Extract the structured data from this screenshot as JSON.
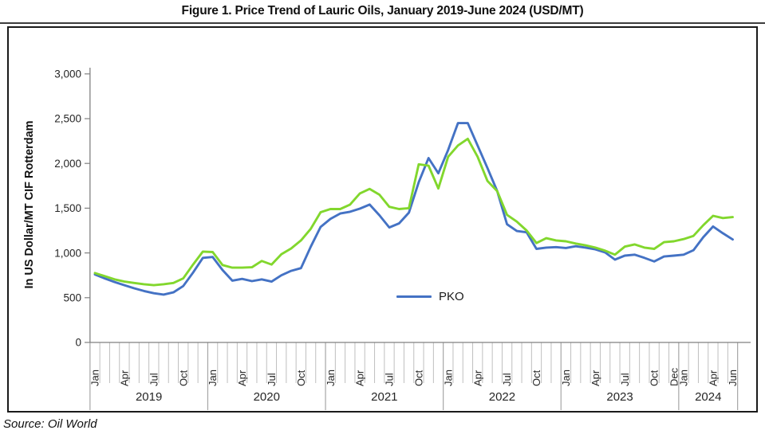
{
  "figure": {
    "title": "Figure 1. Price Trend of Lauric Oils, January 2019-June 2024 (USD/MT)",
    "source_note": "Source: Oil World"
  },
  "chart_data": {
    "type": "line",
    "title": "Figure 1. Price Trend of Lauric Oils, January 2019-June 2024 (USD/MT)",
    "xlabel": "",
    "ylabel": "In US Dollar/MT CIF Rotterdam",
    "ylim": [
      0,
      3000
    ],
    "y_ticks": [
      0,
      500,
      1000,
      1500,
      2000,
      2500,
      3000
    ],
    "y_tick_labels": [
      "0",
      "500",
      "1,000",
      "1,500",
      "2,000",
      "2,500",
      "3,000"
    ],
    "grid": false,
    "legend_position": "inside-lower-center",
    "legend": [
      {
        "label": "PKO",
        "color": "#4472C4"
      }
    ],
    "years": [
      {
        "label": "2019",
        "months": 12,
        "ticks": {
          "0": "Jan",
          "3": "Apr",
          "6": "Jul",
          "9": "Oct"
        }
      },
      {
        "label": "2020",
        "months": 12,
        "ticks": {
          "0": "Jan",
          "3": "Apr",
          "6": "Jul",
          "9": "Oct"
        }
      },
      {
        "label": "2021",
        "months": 12,
        "ticks": {
          "0": "Jan",
          "3": "Apr",
          "6": "Jul",
          "9": "Oct"
        }
      },
      {
        "label": "2022",
        "months": 12,
        "ticks": {
          "0": "Jan",
          "3": "Apr",
          "6": "Jul",
          "9": "Oct"
        }
      },
      {
        "label": "2023",
        "months": 12,
        "ticks": {
          "0": "Jan",
          "3": "Apr",
          "6": "Jul",
          "9": "Oct",
          "11": "Dec"
        }
      },
      {
        "label": "2024",
        "months": 6,
        "ticks": {
          "0": "Jan",
          "3": "Apr",
          "5": "Jun"
        }
      }
    ],
    "series": [
      {
        "name": "PKO",
        "color": "#4472C4",
        "values": [
          760,
          715,
          675,
          640,
          605,
          575,
          550,
          535,
          560,
          630,
          780,
          945,
          955,
          810,
          690,
          710,
          685,
          705,
          680,
          750,
          800,
          830,
          1070,
          1290,
          1380,
          1440,
          1460,
          1495,
          1540,
          1420,
          1285,
          1330,
          1450,
          1790,
          2060,
          1890,
          2150,
          2450,
          2450,
          2200,
          1950,
          1690,
          1320,
          1245,
          1230,
          1045,
          1060,
          1065,
          1055,
          1075,
          1060,
          1040,
          1005,
          925,
          970,
          980,
          945,
          905,
          960,
          970,
          980,
          1030,
          1175,
          1295,
          1220,
          1150
        ]
      },
      {
        "name": "",
        "color": "#82D72D",
        "values": [
          775,
          740,
          705,
          680,
          665,
          650,
          640,
          650,
          665,
          715,
          870,
          1015,
          1010,
          865,
          835,
          835,
          840,
          910,
          870,
          985,
          1050,
          1140,
          1270,
          1455,
          1490,
          1490,
          1540,
          1665,
          1715,
          1650,
          1515,
          1490,
          1500,
          1990,
          1975,
          1720,
          2075,
          2200,
          2275,
          2075,
          1805,
          1690,
          1425,
          1350,
          1250,
          1110,
          1165,
          1140,
          1130,
          1105,
          1085,
          1060,
          1025,
          980,
          1070,
          1095,
          1060,
          1045,
          1120,
          1130,
          1155,
          1190,
          1310,
          1415,
          1390,
          1400
        ]
      }
    ]
  }
}
